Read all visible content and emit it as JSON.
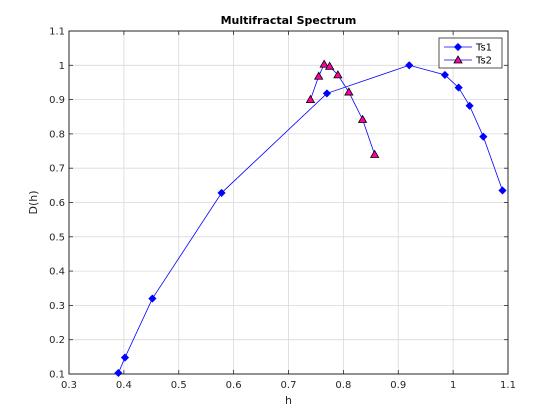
{
  "chart_data": {
    "type": "line",
    "title": "Multifractal Spectrum",
    "xlabel": "h",
    "ylabel": "D(h)",
    "xlim": [
      0.3,
      1.1
    ],
    "ylim": [
      0.1,
      1.1
    ],
    "xticks": [
      "0.3",
      "0.4",
      "0.5",
      "0.6",
      "0.7",
      "0.8",
      "0.9",
      "1",
      "1.1"
    ],
    "yticks": [
      "0.1",
      "0.2",
      "0.3",
      "0.4",
      "0.5",
      "0.6",
      "0.7",
      "0.8",
      "0.9",
      "1",
      "1.1"
    ],
    "grid": true,
    "legend_position": "top-right",
    "series": [
      {
        "name": "Ts1",
        "color": "#0000ff",
        "marker": "diamond",
        "marker_fill": "#0000ff",
        "x": [
          0.39,
          0.402,
          0.452,
          0.578,
          0.77,
          0.92,
          0.985,
          1.01,
          1.03,
          1.055,
          1.09
        ],
        "y": [
          0.103,
          0.148,
          0.32,
          0.628,
          0.918,
          1.0,
          0.972,
          0.935,
          0.882,
          0.792,
          0.635
        ]
      },
      {
        "name": "Ts2",
        "color": "#0000ff",
        "marker": "triangle",
        "marker_fill": "#ff00a0",
        "marker_edge": "#000000",
        "x": [
          0.74,
          0.755,
          0.765,
          0.775,
          0.79,
          0.81,
          0.835,
          0.857
        ],
        "y": [
          0.9,
          0.968,
          1.003,
          0.997,
          0.972,
          0.922,
          0.842,
          0.74
        ]
      }
    ]
  }
}
